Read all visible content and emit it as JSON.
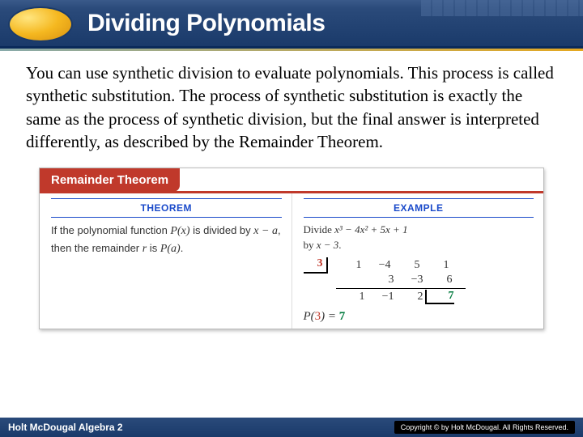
{
  "header": {
    "title": "Dividing Polynomials"
  },
  "body": {
    "paragraph": "You can use synthetic division to evaluate polynomials. This process is called synthetic substitution. The process of synthetic substitution is exactly the same as the process of synthetic division, but the final answer is interpreted differently, as described by the Remainder Theorem."
  },
  "card": {
    "tab": "Remainder Theorem",
    "col1_head": "THEOREM",
    "col2_head": "EXAMPLE",
    "theorem_l1": "If the polynomial function ",
    "theorem_px": "P(x)",
    "theorem_l2": " is divided by ",
    "theorem_xa": "x − a",
    "theorem_l3": ", then the remainder ",
    "theorem_r": "r",
    "theorem_l4": " is ",
    "theorem_pa": "P(a)",
    "theorem_l5": ".",
    "example_divide": "Divide ",
    "example_poly": "x³ − 4x² + 5x + 1",
    "example_by": " by ",
    "example_divisor": "x − 3",
    "example_dot": "."
  },
  "syn": {
    "divisor": "3",
    "row1": [
      "1",
      "−4",
      "5",
      "1"
    ],
    "row2": [
      "",
      "3",
      "−3",
      "6"
    ],
    "row3": [
      "1",
      "−1",
      "2",
      "7"
    ],
    "remainder": "7"
  },
  "presult": {
    "pref": "P(",
    "arg": "3",
    "mid": ") = ",
    "val": "7"
  },
  "footer": {
    "left": "Holt McDougal Algebra 2",
    "right": "Copyright © by Holt McDougal. All Rights Reserved."
  },
  "colors": {
    "header_bg": "#1a3a6a",
    "accent_red": "#c0392b",
    "accent_blue": "#1a4aca",
    "accent_green": "#007a3d",
    "capsule": "#f5b820"
  }
}
